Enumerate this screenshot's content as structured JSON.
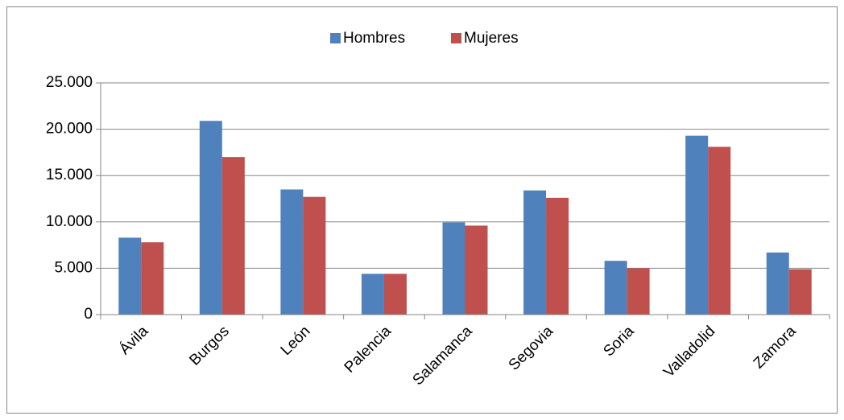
{
  "chart_data": {
    "type": "bar",
    "categories": [
      "Ávila",
      "Burgos",
      "León",
      "Palencia",
      "Salamanca",
      "Segovia",
      "Soria",
      "Valladolid",
      "Zamora"
    ],
    "series": [
      {
        "name": "Hombres",
        "color": "#4f81bd",
        "values": [
          8300,
          20900,
          13500,
          4400,
          9950,
          13400,
          5800,
          19300,
          6700
        ]
      },
      {
        "name": "Mujeres",
        "color": "#c0504d",
        "values": [
          7800,
          17000,
          12700,
          4400,
          9600,
          12600,
          5000,
          18100,
          4900
        ]
      }
    ],
    "ylim": [
      0,
      25000
    ],
    "yticks": [
      0,
      {
        "value": 5000,
        "label": "5.000"
      },
      {
        "value": 10000,
        "label": "10.000"
      },
      {
        "value": 15000,
        "label": "15.000"
      },
      {
        "value": 20000,
        "label": "20.000"
      },
      {
        "value": 25000,
        "label": "25.000"
      }
    ],
    "grid": true,
    "legend": "top"
  }
}
